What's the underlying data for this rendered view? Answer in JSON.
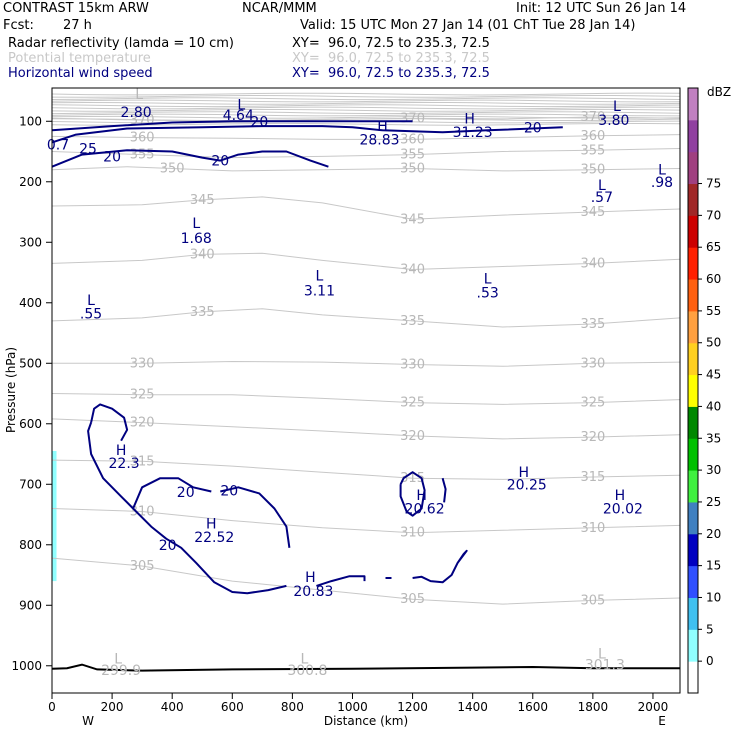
{
  "header": {
    "model": "CONTRAST 15km ARW",
    "center": "NCAR/MMM",
    "init": "Init: 12 UTC Sun 26 Jan 14",
    "fcst_label": "Fcst:",
    "fcst_value": "27 h",
    "valid": "Valid: 15 UTC Mon 27 Jan 14 (01 ChT Tue 28 Jan 14)",
    "fields": [
      {
        "name": "Radar reflectivity (lamda = 10 cm)",
        "xy": "XY=  96.0, 72.5 to 235.3, 72.5",
        "color": "#000000"
      },
      {
        "name": "Potential temperature",
        "xy": "XY=  96.0, 72.5 to 235.3, 72.5",
        "color": "#c8c8c8"
      },
      {
        "name": "Horizontal wind speed",
        "xy": "XY=  96.0, 72.5 to 235.3, 72.5",
        "color": "#000080"
      }
    ]
  },
  "chart_data": {
    "type": "contour",
    "xlabel": "Distance (km)",
    "ylabel": "Pressure (hPa)",
    "xlim": [
      0,
      2090
    ],
    "ylim": [
      1045,
      45
    ],
    "x_ticks": [
      0,
      200,
      400,
      600,
      800,
      1000,
      1200,
      1400,
      1600,
      1800,
      2000
    ],
    "y_ticks": [
      100,
      200,
      300,
      400,
      500,
      600,
      700,
      800,
      900,
      1000
    ],
    "west_label": "W",
    "east_label": "E",
    "colorbar": {
      "unit": "dBZ",
      "levels": [
        0,
        5,
        10,
        15,
        20,
        25,
        30,
        35,
        40,
        45,
        50,
        55,
        60,
        65,
        70,
        75
      ],
      "colors": [
        "#ffffff",
        "#90ffff",
        "#40c0f0",
        "#3050ff",
        "#0000c0",
        "#4080c0",
        "#40f040",
        "#00c000",
        "#008800",
        "#ffff00",
        "#ffd020",
        "#ffa040",
        "#ff6010",
        "#ff2000",
        "#cc0000",
        "#a02828",
        "#a04080",
        "#9040a0",
        "#c080c0"
      ]
    },
    "theta_isentropes": [
      {
        "label": "370",
        "points": [
          [
            0,
            95
          ],
          [
            300,
            98
          ],
          [
            600,
            100
          ],
          [
            900,
            97
          ],
          [
            1200,
            95
          ],
          [
            1500,
            96
          ],
          [
            1800,
            93
          ],
          [
            2090,
            95
          ]
        ]
      },
      {
        "label": "360",
        "points": [
          [
            0,
            125
          ],
          [
            300,
            127
          ],
          [
            600,
            128
          ],
          [
            900,
            130
          ],
          [
            1200,
            130
          ],
          [
            1500,
            127
          ],
          [
            1800,
            124
          ],
          [
            2090,
            122
          ]
        ]
      },
      {
        "label": "355",
        "points": [
          [
            0,
            150
          ],
          [
            300,
            155
          ],
          [
            600,
            160
          ],
          [
            900,
            158
          ],
          [
            1200,
            155
          ],
          [
            1500,
            150
          ],
          [
            1800,
            148
          ],
          [
            2090,
            145
          ]
        ]
      },
      {
        "label": "350",
        "points": [
          [
            0,
            180
          ],
          [
            250,
            175
          ],
          [
            400,
            178
          ],
          [
            600,
            182
          ],
          [
            900,
            180
          ],
          [
            1200,
            178
          ],
          [
            1500,
            182
          ],
          [
            1800,
            180
          ],
          [
            2090,
            178
          ]
        ]
      },
      {
        "label": "345",
        "points": [
          [
            0,
            240
          ],
          [
            300,
            238
          ],
          [
            500,
            230
          ],
          [
            700,
            225
          ],
          [
            900,
            235
          ],
          [
            1200,
            262
          ],
          [
            1500,
            255
          ],
          [
            1800,
            250
          ],
          [
            2090,
            245
          ]
        ]
      },
      {
        "label": "340",
        "points": [
          [
            0,
            335
          ],
          [
            300,
            330
          ],
          [
            500,
            320
          ],
          [
            700,
            318
          ],
          [
            900,
            330
          ],
          [
            1200,
            345
          ],
          [
            1500,
            340
          ],
          [
            1800,
            335
          ],
          [
            2090,
            328
          ]
        ]
      },
      {
        "label": "335",
        "points": [
          [
            0,
            430
          ],
          [
            300,
            425
          ],
          [
            500,
            415
          ],
          [
            700,
            410
          ],
          [
            900,
            420
          ],
          [
            1200,
            430
          ],
          [
            1500,
            440
          ],
          [
            1800,
            435
          ],
          [
            2090,
            425
          ]
        ]
      },
      {
        "label": "330",
        "points": [
          [
            0,
            500
          ],
          [
            300,
            500
          ],
          [
            600,
            497
          ],
          [
            900,
            498
          ],
          [
            1200,
            502
          ],
          [
            1500,
            505
          ],
          [
            1800,
            500
          ],
          [
            2090,
            498
          ]
        ]
      },
      {
        "label": "325",
        "points": [
          [
            0,
            550
          ],
          [
            300,
            552
          ],
          [
            600,
            552
          ],
          [
            900,
            558
          ],
          [
            1200,
            565
          ],
          [
            1500,
            568
          ],
          [
            1800,
            565
          ],
          [
            2090,
            560
          ]
        ]
      },
      {
        "label": "320",
        "points": [
          [
            0,
            592
          ],
          [
            300,
            598
          ],
          [
            600,
            605
          ],
          [
            900,
            612
          ],
          [
            1200,
            620
          ],
          [
            1500,
            625
          ],
          [
            1800,
            622
          ],
          [
            2090,
            618
          ]
        ]
      },
      {
        "label": "315",
        "points": [
          [
            0,
            660
          ],
          [
            300,
            662
          ],
          [
            600,
            670
          ],
          [
            900,
            680
          ],
          [
            1200,
            690
          ],
          [
            1500,
            692
          ],
          [
            1800,
            688
          ],
          [
            2090,
            685
          ]
        ]
      },
      {
        "label": "310",
        "points": [
          [
            0,
            740
          ],
          [
            300,
            745
          ],
          [
            600,
            760
          ],
          [
            900,
            772
          ],
          [
            1200,
            780
          ],
          [
            1500,
            776
          ],
          [
            1800,
            772
          ],
          [
            2090,
            768
          ]
        ]
      },
      {
        "label": "305",
        "points": [
          [
            0,
            822
          ],
          [
            300,
            835
          ],
          [
            600,
            860
          ],
          [
            900,
            875
          ],
          [
            1200,
            890
          ],
          [
            1500,
            898
          ],
          [
            1800,
            892
          ],
          [
            2090,
            888
          ]
        ]
      }
    ],
    "surface_line": [
      [
        0,
        1005
      ],
      [
        50,
        1004
      ],
      [
        100,
        998
      ],
      [
        150,
        1006
      ],
      [
        300,
        1008
      ],
      [
        600,
        1006
      ],
      [
        1000,
        1005
      ],
      [
        1400,
        1003
      ],
      [
        1600,
        1002
      ],
      [
        1800,
        1004
      ],
      [
        2090,
        1004
      ]
    ],
    "wind_20_contours": [
      [
        [
          0,
          175
        ],
        [
          100,
          155
        ],
        [
          250,
          148
        ],
        [
          400,
          150
        ],
        [
          500,
          160
        ],
        [
          560,
          165
        ],
        [
          620,
          155
        ],
        [
          700,
          150
        ],
        [
          780,
          150
        ],
        [
          860,
          165
        ],
        [
          920,
          175
        ]
      ],
      [
        [
          0,
          135
        ],
        [
          80,
          122
        ],
        [
          250,
          112
        ],
        [
          500,
          110
        ],
        [
          700,
          108
        ],
        [
          900,
          108
        ],
        [
          1000,
          110
        ],
        [
          1100,
          115
        ],
        [
          1300,
          118
        ],
        [
          1450,
          115
        ],
        [
          1700,
          110
        ]
      ],
      [
        [
          0,
          115
        ],
        [
          200,
          108
        ],
        [
          400,
          102
        ],
        [
          600,
          100
        ],
        [
          800,
          100
        ],
        [
          1000,
          100
        ],
        [
          1200,
          100
        ]
      ],
      [
        [
          130,
          598
        ],
        [
          140,
          575
        ],
        [
          160,
          568
        ],
        [
          200,
          575
        ],
        [
          240,
          590
        ],
        [
          250,
          610
        ],
        [
          230,
          628
        ]
      ],
      [
        [
          130,
          598
        ],
        [
          120,
          612
        ],
        [
          130,
          650
        ],
        [
          170,
          690
        ],
        [
          230,
          720
        ],
        [
          270,
          740
        ],
        [
          330,
          770
        ],
        [
          380,
          790
        ],
        [
          430,
          805
        ],
        [
          480,
          830
        ],
        [
          540,
          862
        ],
        [
          600,
          878
        ],
        [
          650,
          880
        ],
        [
          720,
          875
        ],
        [
          780,
          868
        ]
      ],
      [
        [
          270,
          740
        ],
        [
          300,
          705
        ],
        [
          360,
          690
        ],
        [
          420,
          690
        ],
        [
          470,
          705
        ],
        [
          530,
          712
        ]
      ],
      [
        [
          560,
          712
        ],
        [
          620,
          705
        ],
        [
          690,
          715
        ],
        [
          740,
          740
        ],
        [
          780,
          770
        ],
        [
          790,
          805
        ]
      ],
      [
        [
          880,
          868
        ],
        [
          930,
          860
        ],
        [
          990,
          852
        ],
        [
          1040,
          852
        ],
        [
          1040,
          860
        ]
      ],
      [
        [
          1110,
          855
        ],
        [
          1130,
          855
        ]
      ],
      [
        [
          1200,
          855
        ],
        [
          1230,
          853
        ],
        [
          1260,
          860
        ],
        [
          1300,
          862
        ],
        [
          1330,
          850
        ],
        [
          1350,
          830
        ],
        [
          1380,
          810
        ],
        [
          1370,
          815
        ],
        [
          1350,
          830
        ]
      ],
      [
        [
          1160,
          700
        ],
        [
          1170,
          690
        ],
        [
          1200,
          680
        ],
        [
          1230,
          690
        ],
        [
          1240,
          710
        ],
        [
          1230,
          740
        ],
        [
          1200,
          752
        ],
        [
          1180,
          745
        ],
        [
          1160,
          720
        ],
        [
          1160,
          700
        ]
      ],
      [
        [
          1300,
          690
        ],
        [
          1310,
          708
        ],
        [
          1305,
          730
        ]
      ]
    ],
    "annotations": [
      {
        "text": "L",
        "x": 290,
        "y": 55,
        "color": "gray"
      },
      {
        "text": "2.80",
        "x": 280,
        "y": 85,
        "color": "navy"
      },
      {
        "text": "L",
        "x": 630,
        "y": 72,
        "color": "navy"
      },
      {
        "text": "4.64",
        "x": 620,
        "y": 90,
        "color": "navy"
      },
      {
        "text": "20",
        "x": 690,
        "y": 100,
        "color": "navy"
      },
      {
        "text": "H",
        "x": 1100,
        "y": 108,
        "color": "navy"
      },
      {
        "text": "28.83",
        "x": 1090,
        "y": 130,
        "color": "navy"
      },
      {
        "text": "H",
        "x": 1390,
        "y": 95,
        "color": "navy"
      },
      {
        "text": "31.23",
        "x": 1400,
        "y": 118,
        "color": "navy"
      },
      {
        "text": "20",
        "x": 1600,
        "y": 110,
        "color": "navy"
      },
      {
        "text": "L",
        "x": 1880,
        "y": 75,
        "color": "navy"
      },
      {
        "text": "3.80",
        "x": 1870,
        "y": 98,
        "color": "navy"
      },
      {
        "text": "0.7",
        "x": 20,
        "y": 138,
        "color": "navy"
      },
      {
        "text": "25",
        "x": 120,
        "y": 145,
        "color": "navy"
      },
      {
        "text": "20",
        "x": 200,
        "y": 158,
        "color": "navy"
      },
      {
        "text": "20",
        "x": 560,
        "y": 165,
        "color": "navy"
      },
      {
        "text": "L",
        "x": 2030,
        "y": 180,
        "color": "navy"
      },
      {
        "text": ".98",
        "x": 2030,
        "y": 200,
        "color": "navy"
      },
      {
        "text": "L",
        "x": 1830,
        "y": 205,
        "color": "navy"
      },
      {
        "text": ".57",
        "x": 1830,
        "y": 225,
        "color": "navy"
      },
      {
        "text": "L",
        "x": 480,
        "y": 268,
        "color": "navy"
      },
      {
        "text": "1.68",
        "x": 480,
        "y": 293,
        "color": "navy"
      },
      {
        "text": "L",
        "x": 890,
        "y": 355,
        "color": "navy"
      },
      {
        "text": "3.11",
        "x": 890,
        "y": 380,
        "color": "navy"
      },
      {
        "text": "L",
        "x": 1450,
        "y": 360,
        "color": "navy"
      },
      {
        "text": ".53",
        "x": 1450,
        "y": 383,
        "color": "navy"
      },
      {
        "text": "L",
        "x": 130,
        "y": 395,
        "color": "navy"
      },
      {
        "text": ".55",
        "x": 130,
        "y": 418,
        "color": "navy"
      },
      {
        "text": "H",
        "x": 230,
        "y": 643,
        "color": "navy"
      },
      {
        "text": "22.3",
        "x": 240,
        "y": 665,
        "color": "navy"
      },
      {
        "text": "20",
        "x": 445,
        "y": 713,
        "color": "navy"
      },
      {
        "text": "20",
        "x": 590,
        "y": 710,
        "color": "navy"
      },
      {
        "text": "H",
        "x": 1230,
        "y": 718,
        "color": "navy"
      },
      {
        "text": "20.62",
        "x": 1240,
        "y": 740,
        "color": "navy"
      },
      {
        "text": "H",
        "x": 1570,
        "y": 680,
        "color": "navy"
      },
      {
        "text": "20.25",
        "x": 1580,
        "y": 700,
        "color": "navy"
      },
      {
        "text": "H",
        "x": 1890,
        "y": 718,
        "color": "navy"
      },
      {
        "text": "20.02",
        "x": 1900,
        "y": 740,
        "color": "navy"
      },
      {
        "text": "H",
        "x": 530,
        "y": 765,
        "color": "navy"
      },
      {
        "text": "22.52",
        "x": 540,
        "y": 787,
        "color": "navy"
      },
      {
        "text": "20",
        "x": 385,
        "y": 800,
        "color": "navy"
      },
      {
        "text": "H",
        "x": 860,
        "y": 853,
        "color": "navy"
      },
      {
        "text": "20.83",
        "x": 870,
        "y": 876,
        "color": "navy"
      },
      {
        "text": "L",
        "x": 220,
        "y": 988,
        "color": "gray"
      },
      {
        "text": "299.9",
        "x": 230,
        "y": 1007,
        "color": "gray"
      },
      {
        "text": "L",
        "x": 840,
        "y": 988,
        "color": "gray"
      },
      {
        "text": "300.8",
        "x": 850,
        "y": 1007,
        "color": "gray"
      },
      {
        "text": "L",
        "x": 1830,
        "y": 980,
        "color": "gray"
      },
      {
        "text": "301.3",
        "x": 1840,
        "y": 998,
        "color": "gray"
      }
    ],
    "left_edge_reflectivity": {
      "x_range": [
        0,
        15
      ],
      "p_range": [
        645,
        860
      ],
      "color": "#90ffff"
    },
    "upper_stratosphere_lines": {
      "p_range": [
        55,
        105
      ],
      "count": 14,
      "color": "#c8c8c8"
    }
  }
}
